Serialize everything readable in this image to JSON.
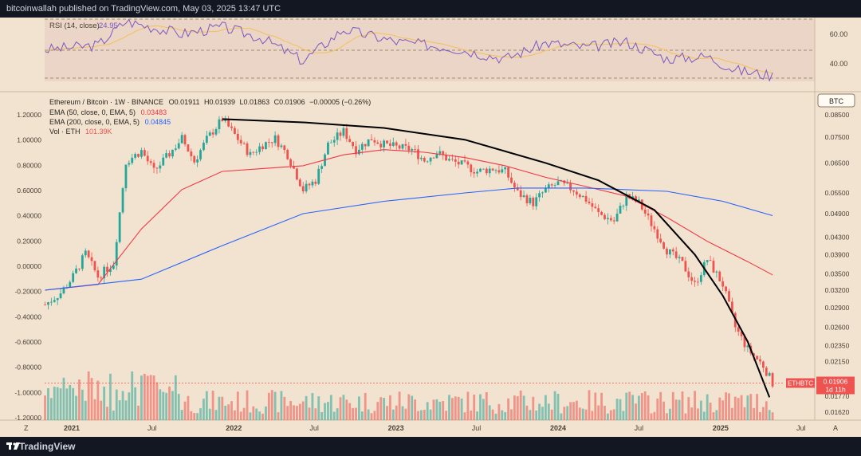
{
  "header": {
    "publisher_line": "bitcoinwallah published on TradingView.com, May 03, 2025 13:47 UTC"
  },
  "footer": {
    "brand": "TradingView"
  },
  "rsi": {
    "label": "RSI (14, close)",
    "value": "24.95",
    "ticks": [
      "60.00",
      "40.00"
    ]
  },
  "legend": {
    "symbol": "Ethereum / Bitcoin · 1W · BINANCE",
    "o_label": "O",
    "o": "0.01911",
    "h_label": "H",
    "h": "0.01939",
    "l_label": "L",
    "l": "0.01863",
    "c_label": "C",
    "c": "0.01906",
    "change": "−0.00005 (−0.26%)",
    "ema50_label": "EMA (50, close, 0, EMA, 5)",
    "ema50_value": "0.03483",
    "ema200_label": "EMA (200, close, 0, EMA, 5)",
    "ema200_value": "0.04845",
    "vol_label": "Vol · ETH",
    "vol_value": "101.39K"
  },
  "currency_button": "BTC",
  "price_tag": {
    "symbol": "ETHBTC",
    "price": "0.01906",
    "countdown": "1d 11h"
  },
  "colors": {
    "up": "#26a69a",
    "down": "#ef5350",
    "ema50": "#f23645",
    "ema200": "#2962ff",
    "rsi_line": "#7e57c2",
    "rsi_ma": "#f5c05a",
    "background": "#f1e3cf",
    "arc": "#000000"
  },
  "left_axis_ticks": [
    "1.20000",
    "1.00000",
    "0.80000",
    "0.60000",
    "0.40000",
    "0.20000",
    "0.00000",
    "-0.20000",
    "-0.40000",
    "-0.60000",
    "-0.80000",
    "-1.00000",
    "-1.20000"
  ],
  "right_axis_ticks": [
    "0.08500",
    "0.07500",
    "0.06500",
    "0.05500",
    "0.04900",
    "0.04300",
    "0.03900",
    "0.03500",
    "0.03200",
    "0.02900",
    "0.02600",
    "0.02350",
    "0.02150",
    "0.01950",
    "0.01770",
    "0.01620"
  ],
  "x_axis_labels": [
    "2021",
    "Jul",
    "2022",
    "Jul",
    "2023",
    "Jul",
    "2024",
    "Jul",
    "2025",
    "Jul"
  ],
  "corner_labels": {
    "left": "Z",
    "right": "A"
  },
  "chart_data": {
    "type": "candlestick",
    "title": "Ethereum / Bitcoin · 1W · BINANCE",
    "scale": "log",
    "x_start": "2020-11",
    "x_end": "2025-08",
    "ylim": [
      0.0155,
      0.095
    ],
    "series": [
      {
        "name": "ETHBTC weekly close (approx.)",
        "points": [
          [
            "2020-11-02",
            0.0295
          ],
          [
            "2020-12-07",
            0.0315
          ],
          [
            "2021-01-04",
            0.0345
          ],
          [
            "2021-02-01",
            0.0392
          ],
          [
            "2021-03-01",
            0.0345
          ],
          [
            "2021-04-05",
            0.0372
          ],
          [
            "2021-05-03",
            0.0655
          ],
          [
            "2021-06-07",
            0.0695
          ],
          [
            "2021-07-05",
            0.062
          ],
          [
            "2021-08-02",
            0.067
          ],
          [
            "2021-09-06",
            0.0745
          ],
          [
            "2021-10-04",
            0.0655
          ],
          [
            "2021-11-01",
            0.0742
          ],
          [
            "2021-12-06",
            0.083
          ],
          [
            "2022-01-03",
            0.076
          ],
          [
            "2022-02-07",
            0.068
          ],
          [
            "2022-03-07",
            0.072
          ],
          [
            "2022-04-04",
            0.0745
          ],
          [
            "2022-05-02",
            0.068
          ],
          [
            "2022-06-06",
            0.056
          ],
          [
            "2022-07-04",
            0.059
          ],
          [
            "2022-08-01",
            0.072
          ],
          [
            "2022-09-05",
            0.0775
          ],
          [
            "2022-10-03",
            0.07
          ],
          [
            "2022-11-07",
            0.0745
          ],
          [
            "2022-12-05",
            0.072
          ],
          [
            "2023-01-02",
            0.071
          ],
          [
            "2023-02-06",
            0.07
          ],
          [
            "2023-03-06",
            0.066
          ],
          [
            "2023-04-03",
            0.069
          ],
          [
            "2023-05-01",
            0.066
          ],
          [
            "2023-06-05",
            0.064
          ],
          [
            "2023-07-03",
            0.062
          ],
          [
            "2023-08-07",
            0.063
          ],
          [
            "2023-09-04",
            0.062
          ],
          [
            "2023-10-02",
            0.055
          ],
          [
            "2023-11-06",
            0.052
          ],
          [
            "2023-12-04",
            0.056
          ],
          [
            "2024-01-01",
            0.058
          ],
          [
            "2024-02-05",
            0.056
          ],
          [
            "2024-03-04",
            0.053
          ],
          [
            "2024-04-01",
            0.049
          ],
          [
            "2024-05-06",
            0.047
          ],
          [
            "2024-06-03",
            0.054
          ],
          [
            "2024-07-01",
            0.052
          ],
          [
            "2024-08-05",
            0.045
          ],
          [
            "2024-09-02",
            0.04
          ],
          [
            "2024-10-07",
            0.037
          ],
          [
            "2024-11-04",
            0.033
          ],
          [
            "2024-12-02",
            0.038
          ],
          [
            "2025-01-06",
            0.033
          ],
          [
            "2025-02-03",
            0.026
          ],
          [
            "2025-03-03",
            0.023
          ],
          [
            "2025-04-07",
            0.021
          ],
          [
            "2025-04-28",
            0.01906
          ]
        ]
      },
      {
        "name": "EMA (50, close, 0, EMA, 5)",
        "points": [
          [
            "2020-11-02",
            0.032
          ],
          [
            "2021-03-01",
            0.033
          ],
          [
            "2021-06-07",
            0.045
          ],
          [
            "2021-09-06",
            0.056
          ],
          [
            "2021-12-06",
            0.062
          ],
          [
            "2022-03-07",
            0.063
          ],
          [
            "2022-06-06",
            0.064
          ],
          [
            "2022-09-05",
            0.068
          ],
          [
            "2022-12-05",
            0.07
          ],
          [
            "2023-03-06",
            0.069
          ],
          [
            "2023-06-05",
            0.067
          ],
          [
            "2023-09-04",
            0.064
          ],
          [
            "2023-12-04",
            0.06
          ],
          [
            "2024-03-04",
            0.057
          ],
          [
            "2024-06-03",
            0.054
          ],
          [
            "2024-09-02",
            0.048
          ],
          [
            "2024-12-02",
            0.042
          ],
          [
            "2025-03-03",
            0.0375
          ],
          [
            "2025-04-28",
            0.03483
          ]
        ]
      },
      {
        "name": "EMA (200, close, 0, EMA, 5)",
        "points": [
          [
            "2020-11-02",
            0.032
          ],
          [
            "2021-06-07",
            0.034
          ],
          [
            "2021-12-06",
            0.041
          ],
          [
            "2022-06-06",
            0.049
          ],
          [
            "2022-12-05",
            0.0525
          ],
          [
            "2023-06-05",
            0.055
          ],
          [
            "2023-10-02",
            0.0565
          ],
          [
            "2024-03-04",
            0.0565
          ],
          [
            "2024-09-02",
            0.0555
          ],
          [
            "2025-01-06",
            0.0525
          ],
          [
            "2025-04-28",
            0.04845
          ]
        ]
      },
      {
        "name": "Trend arc (annotation)",
        "points": [
          [
            "2021-12-06",
            0.083
          ],
          [
            "2022-06-06",
            0.0815
          ],
          [
            "2022-12-05",
            0.079
          ],
          [
            "2023-06-05",
            0.074
          ],
          [
            "2023-12-04",
            0.065
          ],
          [
            "2024-04-01",
            0.059
          ],
          [
            "2024-08-05",
            0.05
          ],
          [
            "2024-11-04",
            0.039
          ],
          [
            "2025-01-06",
            0.031
          ],
          [
            "2025-03-03",
            0.024
          ],
          [
            "2025-04-21",
            0.0176
          ]
        ]
      },
      {
        "name": "RSI (14, close)",
        "ylim": [
          20,
          75
        ],
        "points": [
          [
            "2020-11-02",
            48
          ],
          [
            "2021-03-01",
            52
          ],
          [
            "2021-05-03",
            73
          ],
          [
            "2021-09-06",
            62
          ],
          [
            "2021-12-06",
            68
          ],
          [
            "2022-03-07",
            58
          ],
          [
            "2022-06-06",
            38
          ],
          [
            "2022-09-05",
            66
          ],
          [
            "2023-01-02",
            55
          ],
          [
            "2023-05-01",
            50
          ],
          [
            "2023-09-04",
            40
          ],
          [
            "2023-12-04",
            54
          ],
          [
            "2024-03-04",
            50
          ],
          [
            "2024-06-03",
            55
          ],
          [
            "2024-09-02",
            40
          ],
          [
            "2024-12-02",
            42
          ],
          [
            "2025-02-03",
            30
          ],
          [
            "2025-04-28",
            24.95
          ]
        ]
      }
    ]
  }
}
